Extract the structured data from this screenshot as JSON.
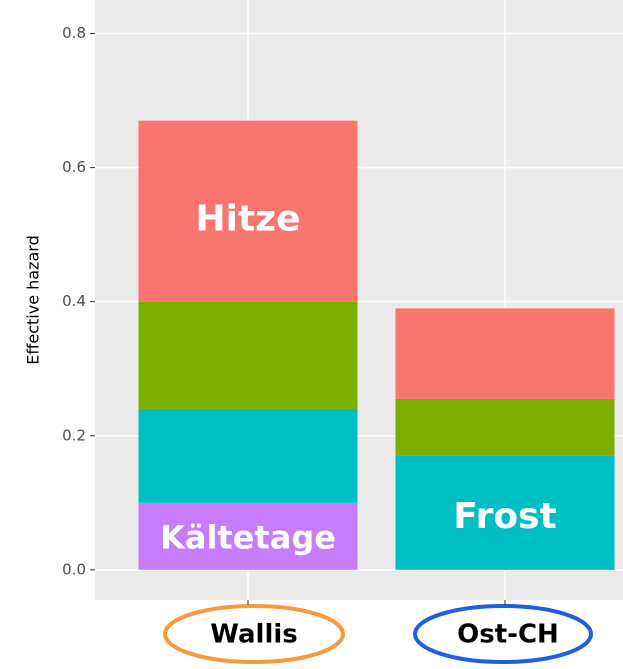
{
  "chart_data": {
    "type": "stacked_bar",
    "y_label": "Effective hazard",
    "categories": [
      "Wallis",
      "Ost-CH"
    ],
    "series": [
      {
        "name": "Kältetage",
        "color": "#c77cff",
        "values": [
          0.1,
          0
        ]
      },
      {
        "name": "Frost",
        "color": "#00bfc4",
        "values": [
          0.14,
          0.17
        ]
      },
      {
        "color": "#7cae00",
        "values": [
          0.16,
          0.085
        ]
      },
      {
        "name": "Hitze",
        "color": "#f8766d",
        "values": [
          0.27,
          0.135
        ]
      }
    ],
    "ylim": [
      -0.045,
      0.85
    ],
    "yticks": [
      {
        "value": 0,
        "label": "0.0"
      },
      0.2,
      0.4,
      0.6,
      0.8
    ],
    "grid": true
  }
}
